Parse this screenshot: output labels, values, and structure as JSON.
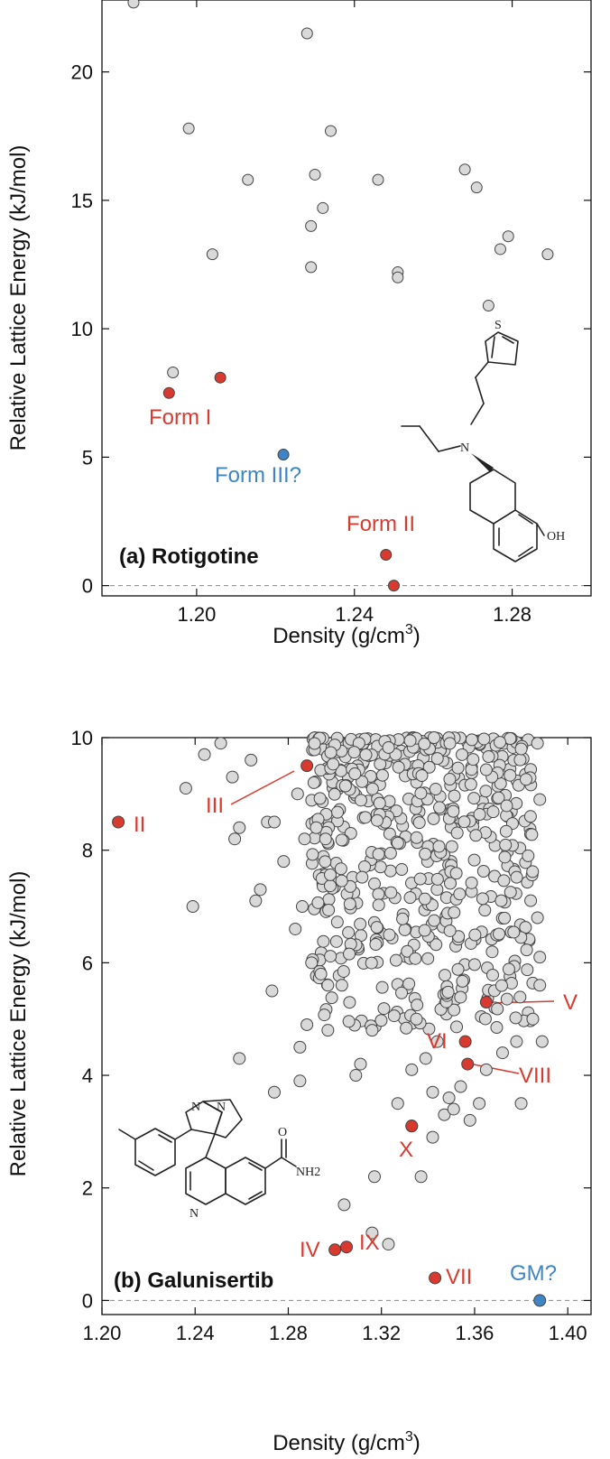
{
  "chart_data": [
    {
      "type": "scatter",
      "panel_label": "(a) Rotigotine",
      "xlabel": "Density (g/cm³)",
      "ylabel": "Relative Lattice Energy (kJ/mol)",
      "xlim": [
        1.176,
        1.3
      ],
      "ylim": [
        -0.4,
        22.8
      ],
      "xticks": [
        1.2,
        1.24,
        1.28
      ],
      "xtick_labels": [
        "1.20",
        "1.24",
        "1.28"
      ],
      "yticks": [
        0,
        5,
        10,
        15,
        20
      ],
      "ytick_labels": [
        "0",
        "5",
        "10",
        "15",
        "20"
      ],
      "grid": false,
      "reference_line_y": 0,
      "colors": {
        "other": "#d9d9d9",
        "experimental": "#d93a2f",
        "putative": "#3f84c4",
        "edge": "#444444"
      },
      "series": [
        {
          "role": "other",
          "points": [
            [
              1.184,
              22.7
            ],
            [
              1.228,
              21.5
            ],
            [
              1.198,
              17.8
            ],
            [
              1.234,
              17.7
            ],
            [
              1.23,
              16.0
            ],
            [
              1.213,
              15.8
            ],
            [
              1.246,
              15.8
            ],
            [
              1.268,
              16.2
            ],
            [
              1.271,
              15.5
            ],
            [
              1.232,
              14.7
            ],
            [
              1.229,
              14.0
            ],
            [
              1.277,
              13.1
            ],
            [
              1.279,
              13.6
            ],
            [
              1.289,
              12.9
            ],
            [
              1.204,
              12.9
            ],
            [
              1.229,
              12.4
            ],
            [
              1.251,
              12.2
            ],
            [
              1.251,
              12.0
            ],
            [
              1.274,
              10.9
            ],
            [
              1.194,
              8.3
            ]
          ]
        },
        {
          "role": "experimental",
          "points": [
            [
              1.193,
              7.5
            ],
            [
              1.206,
              8.1
            ],
            [
              1.248,
              1.2
            ],
            [
              1.25,
              0.0
            ]
          ]
        },
        {
          "role": "putative",
          "points": [
            [
              1.222,
              5.1
            ]
          ]
        }
      ],
      "annotations": [
        {
          "text": "Form I",
          "color": "red"
        },
        {
          "text": "Form III?",
          "color": "blue"
        },
        {
          "text": "Form II",
          "color": "red"
        }
      ],
      "structure_labels": [
        "S",
        "N",
        "OH"
      ]
    },
    {
      "type": "scatter",
      "panel_label": "(b) Galunisertib",
      "xlabel": "Density (g/cm³)",
      "ylabel": "Relative Lattice Energy (kJ/mol)",
      "xlim": [
        1.2,
        1.41
      ],
      "ylim": [
        -0.25,
        10.0
      ],
      "xticks": [
        1.2,
        1.24,
        1.28,
        1.32,
        1.36,
        1.4
      ],
      "xtick_labels": [
        "1.20",
        "1.24",
        "1.28",
        "1.32",
        "1.36",
        "1.40"
      ],
      "yticks": [
        0,
        2,
        4,
        6,
        8,
        10
      ],
      "ytick_labels": [
        "0",
        "2",
        "4",
        "6",
        "8",
        "10"
      ],
      "grid": false,
      "reference_line_y": 0,
      "colors": {
        "other": "#d9d9d9",
        "experimental": "#d93a2f",
        "putative": "#3f84c4",
        "edge": "#444444"
      },
      "series": [
        {
          "role": "other",
          "points": [
            [
              1.236,
              9.1
            ],
            [
              1.239,
              7.0
            ],
            [
              1.244,
              9.7
            ],
            [
              1.251,
              9.9
            ],
            [
              1.257,
              8.2
            ],
            [
              1.259,
              8.4
            ],
            [
              1.256,
              9.3
            ],
            [
              1.264,
              9.6
            ],
            [
              1.271,
              8.5
            ],
            [
              1.268,
              7.3
            ],
            [
              1.274,
              8.5
            ],
            [
              1.278,
              7.8
            ],
            [
              1.273,
              5.5
            ],
            [
              1.266,
              7.1
            ],
            [
              1.274,
              3.7
            ],
            [
              1.259,
              4.3
            ],
            [
              1.287,
              8.2
            ],
            [
              1.292,
              8.4
            ],
            [
              1.296,
              8.2
            ],
            [
              1.291,
              9.2
            ],
            [
              1.284,
              9.0
            ],
            [
              1.283,
              6.6
            ],
            [
              1.286,
              7.0
            ],
            [
              1.29,
              6.0
            ],
            [
              1.294,
              5.8
            ],
            [
              1.297,
              5.6
            ],
            [
              1.303,
              5.6
            ],
            [
              1.297,
              4.8
            ],
            [
              1.285,
              4.5
            ],
            [
              1.288,
              4.9
            ],
            [
              1.285,
              3.9
            ],
            [
              1.309,
              4.0
            ],
            [
              1.311,
              4.2
            ],
            [
              1.304,
              1.7
            ],
            [
              1.316,
              4.8
            ],
            [
              1.316,
              1.2
            ],
            [
              1.317,
              2.2
            ],
            [
              1.323,
              1.0
            ],
            [
              1.327,
              3.5
            ],
            [
              1.333,
              3.1
            ],
            [
              1.333,
              4.1
            ],
            [
              1.337,
              2.2
            ],
            [
              1.339,
              4.3
            ],
            [
              1.342,
              3.7
            ],
            [
              1.342,
              2.9
            ],
            [
              1.344,
              4.6
            ],
            [
              1.347,
              3.3
            ],
            [
              1.349,
              3.6
            ],
            [
              1.351,
              3.4
            ],
            [
              1.354,
              3.8
            ],
            [
              1.358,
              3.2
            ],
            [
              1.362,
              3.5
            ],
            [
              1.365,
              4.1
            ],
            [
              1.372,
              4.4
            ],
            [
              1.38,
              3.5
            ],
            [
              1.378,
              4.6
            ],
            [
              1.385,
              5.0
            ],
            [
              1.388,
              6.1
            ],
            [
              1.388,
              5.6
            ],
            [
              1.387,
              6.8
            ],
            [
              1.389,
              4.6
            ],
            [
              1.383,
              7.9
            ],
            [
              1.384,
              8.6
            ],
            [
              1.387,
              9.9
            ],
            [
              1.38,
              9.8
            ],
            [
              1.388,
              8.9
            ]
          ]
        },
        {
          "role": "dense_cluster",
          "count": 560,
          "x_range": [
            1.29,
            1.385
          ],
          "y_range": [
            4.8,
            10.0
          ],
          "seed": 20240517
        },
        {
          "role": "experimental",
          "points": [
            [
              1.207,
              8.5
            ],
            [
              1.288,
              9.5
            ],
            [
              1.3,
              0.9
            ],
            [
              1.305,
              0.95
            ],
            [
              1.343,
              0.4
            ],
            [
              1.356,
              4.6
            ],
            [
              1.357,
              4.2
            ],
            [
              1.365,
              5.3
            ],
            [
              1.333,
              3.1
            ]
          ]
        },
        {
          "role": "putative",
          "points": [
            [
              1.388,
              0.0
            ]
          ]
        }
      ],
      "annotations": [
        {
          "text": "II",
          "color": "red"
        },
        {
          "text": "III",
          "color": "red"
        },
        {
          "text": "V",
          "color": "red"
        },
        {
          "text": "VI",
          "color": "red"
        },
        {
          "text": "VIII",
          "color": "red"
        },
        {
          "text": "X",
          "color": "red"
        },
        {
          "text": "IV",
          "color": "red"
        },
        {
          "text": "IX",
          "color": "red"
        },
        {
          "text": "VII",
          "color": "red"
        },
        {
          "text": "GM?",
          "color": "blue"
        }
      ],
      "structure_labels": [
        "N",
        "N",
        "N",
        "O",
        "NH2"
      ]
    }
  ]
}
